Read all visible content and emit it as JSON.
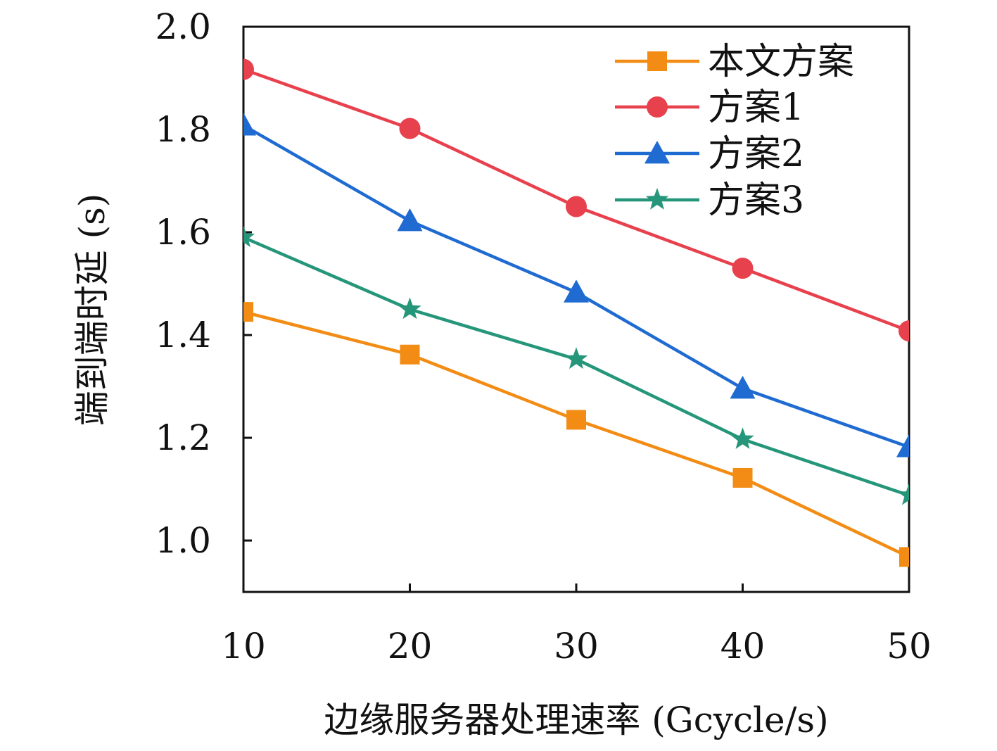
{
  "chart_data": {
    "type": "line",
    "title": "",
    "xlabel": "边缘服务器处理速率 (Gcycle/s)",
    "ylabel": "端到端时延 (s)",
    "x": [
      10,
      20,
      30,
      40,
      50
    ],
    "xlim": [
      10,
      50
    ],
    "ylim": [
      0.9,
      2.0
    ],
    "xticks": [
      "10",
      "20",
      "30",
      "40",
      "50"
    ],
    "yticks": [
      "1.0",
      "1.2",
      "1.4",
      "1.6",
      "1.8",
      "2.0"
    ],
    "grid": false,
    "legend_position": "top-right",
    "series": [
      {
        "name": "本文方案",
        "color": "#f28c14",
        "marker": "square",
        "values": [
          1.445,
          1.362,
          1.235,
          1.122,
          0.968
        ]
      },
      {
        "name": "方案1",
        "color": "#e8414e",
        "marker": "circle",
        "values": [
          1.917,
          1.802,
          1.65,
          1.53,
          1.408
        ]
      },
      {
        "name": "方案2",
        "color": "#1f6bd1",
        "marker": "triangle",
        "values": [
          1.808,
          1.622,
          1.483,
          1.296,
          1.182
        ]
      },
      {
        "name": "方案3",
        "color": "#25967a",
        "marker": "star",
        "values": [
          1.59,
          1.45,
          1.353,
          1.197,
          1.088
        ]
      }
    ]
  }
}
